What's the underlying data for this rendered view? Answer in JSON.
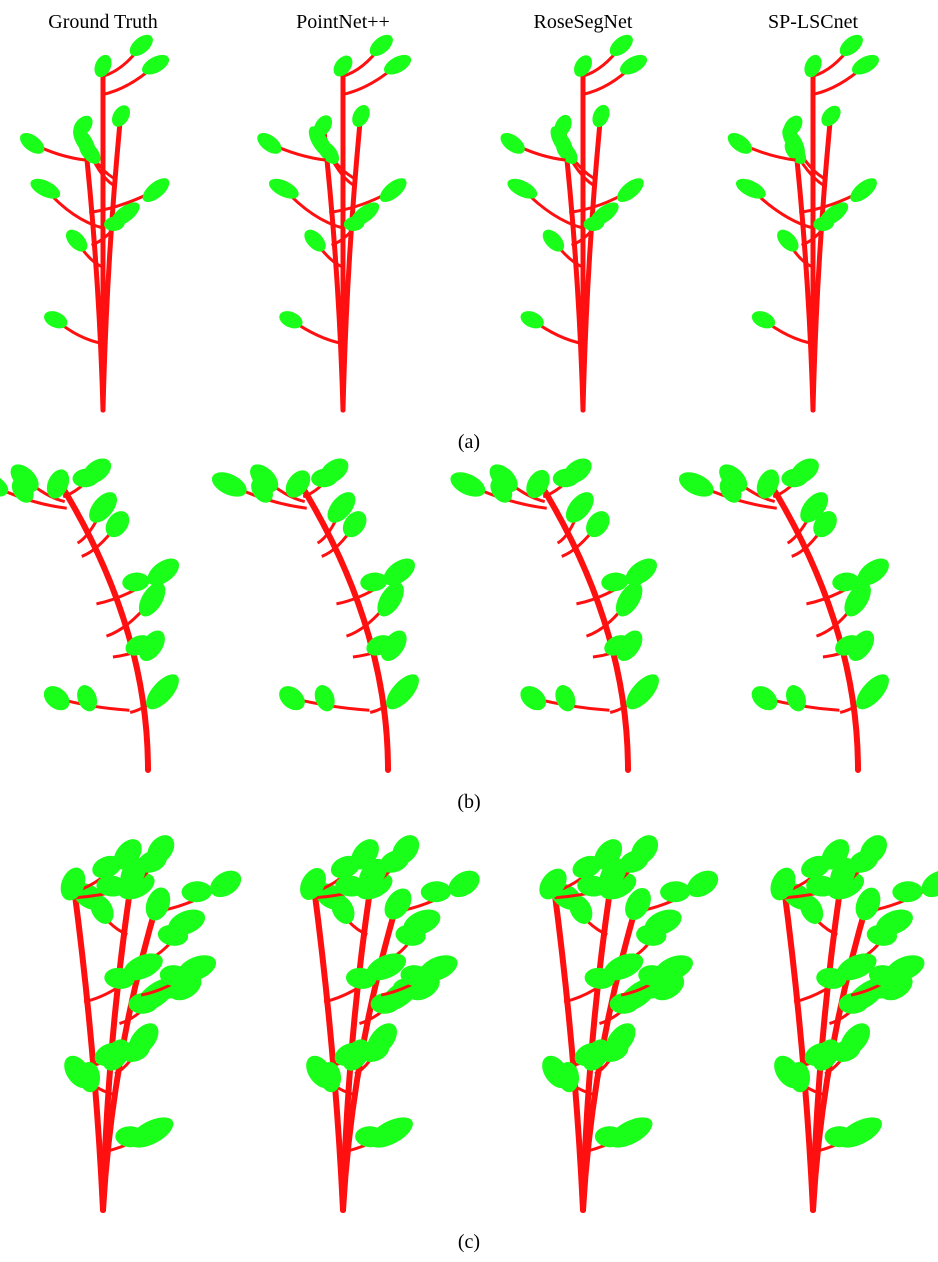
{
  "columns": [
    "Ground Truth",
    "PointNet++",
    "RoseSegNet",
    "SP-LSCnet"
  ],
  "rows": [
    "(a)",
    "(b)",
    "(c)"
  ]
}
